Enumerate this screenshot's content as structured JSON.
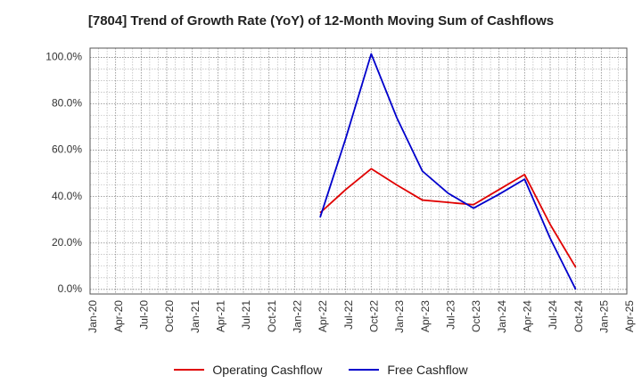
{
  "chart_data": {
    "type": "line",
    "title": "[7804]  Trend of Growth Rate (YoY) of 12-Month Moving Sum of Cashflows",
    "xlabel": "",
    "ylabel": "",
    "x_categories": [
      "Jan-20",
      "Apr-20",
      "Jul-20",
      "Oct-20",
      "Jan-21",
      "Apr-21",
      "Jul-21",
      "Oct-21",
      "Jan-22",
      "Apr-22",
      "Jul-22",
      "Oct-22",
      "Jan-23",
      "Apr-23",
      "Jul-23",
      "Oct-23",
      "Jan-24",
      "Apr-24",
      "Jul-24",
      "Oct-24",
      "Jan-25",
      "Apr-25"
    ],
    "y_ticks": [
      "0.0%",
      "20.0%",
      "40.0%",
      "60.0%",
      "80.0%",
      "100.0%"
    ],
    "ylim": [
      -2,
      104
    ],
    "grid": true,
    "legend_position": "bottom",
    "series": [
      {
        "name": "Operating Cashflow",
        "color": "#e00000",
        "x": [
          "Apr-22",
          "Jul-22",
          "Oct-22",
          "Jan-23",
          "Apr-23",
          "Jul-23",
          "Oct-23",
          "Jan-24",
          "Apr-24",
          "Jul-24",
          "Oct-24"
        ],
        "values": [
          33,
          43,
          52,
          45,
          38.5,
          37.5,
          36.5,
          43,
          49.5,
          28,
          9.5
        ]
      },
      {
        "name": "Free Cashflow",
        "color": "#0000cc",
        "x": [
          "Apr-22",
          "Jul-22",
          "Oct-22",
          "Jan-23",
          "Apr-23",
          "Jul-23",
          "Oct-23",
          "Jan-24",
          "Apr-24",
          "Jul-24",
          "Oct-24"
        ],
        "values": [
          31,
          65,
          101.5,
          74,
          51,
          41.5,
          35,
          41,
          47.5,
          22,
          0
        ]
      }
    ]
  }
}
